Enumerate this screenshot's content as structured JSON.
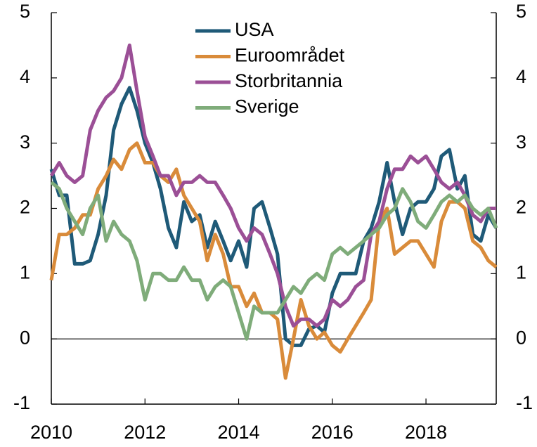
{
  "chart_data": {
    "type": "line",
    "x": [
      2010,
      2010.17,
      2010.33,
      2010.5,
      2010.67,
      2010.83,
      2011,
      2011.17,
      2011.33,
      2011.5,
      2011.67,
      2011.83,
      2012,
      2012.17,
      2012.33,
      2012.5,
      2012.67,
      2012.83,
      2013,
      2013.17,
      2013.33,
      2013.5,
      2013.67,
      2013.83,
      2014,
      2014.17,
      2014.33,
      2014.5,
      2014.67,
      2014.83,
      2015,
      2015.17,
      2015.33,
      2015.5,
      2015.67,
      2015.83,
      2016,
      2016.17,
      2016.33,
      2016.5,
      2016.67,
      2016.83,
      2017,
      2017.17,
      2017.33,
      2017.5,
      2017.67,
      2017.83,
      2018,
      2018.17,
      2018.33,
      2018.5,
      2018.67,
      2018.83,
      2019,
      2019.17,
      2019.33,
      2019.5
    ],
    "series": [
      {
        "name": "USA",
        "color": "#1f5a78",
        "values": [
          2.6,
          2.2,
          2.2,
          1.15,
          1.15,
          1.2,
          1.6,
          2.2,
          3.2,
          3.6,
          3.85,
          3.5,
          3.0,
          2.7,
          2.3,
          1.7,
          1.4,
          2.1,
          1.8,
          1.9,
          1.4,
          1.8,
          1.5,
          1.2,
          1.5,
          1.1,
          2.0,
          2.1,
          1.7,
          1.3,
          0.0,
          -0.1,
          -0.1,
          0.15,
          0.2,
          0.1,
          0.7,
          1.0,
          1.0,
          1.0,
          1.5,
          1.7,
          2.1,
          2.7,
          2.1,
          1.6,
          2.0,
          2.1,
          2.1,
          2.3,
          2.8,
          2.9,
          2.3,
          2.5,
          1.6,
          1.5,
          1.9,
          1.7
        ]
      },
      {
        "name": "Euroområdet",
        "color": "#d98b3a",
        "values": [
          0.9,
          1.6,
          1.6,
          1.7,
          1.9,
          1.9,
          2.3,
          2.5,
          2.75,
          2.6,
          2.9,
          3.0,
          2.7,
          2.7,
          2.5,
          2.4,
          2.6,
          2.2,
          2.0,
          1.8,
          1.2,
          1.6,
          1.3,
          0.8,
          0.8,
          0.5,
          0.7,
          0.4,
          0.4,
          0.3,
          -0.6,
          0.0,
          0.6,
          0.2,
          0.0,
          0.1,
          -0.1,
          -0.2,
          0.0,
          0.2,
          0.4,
          0.6,
          1.8,
          2.0,
          1.3,
          1.4,
          1.5,
          1.5,
          1.3,
          1.1,
          1.8,
          2.1,
          2.1,
          2.0,
          1.5,
          1.4,
          1.2,
          1.1
        ]
      },
      {
        "name": "Storbritannia",
        "color": "#9b4f96",
        "values": [
          2.5,
          2.7,
          2.5,
          2.4,
          2.5,
          3.2,
          3.5,
          3.7,
          3.8,
          4.0,
          4.5,
          3.8,
          3.1,
          2.8,
          2.5,
          2.5,
          2.2,
          2.4,
          2.4,
          2.5,
          2.4,
          2.4,
          2.2,
          2.0,
          1.7,
          1.5,
          1.7,
          1.6,
          1.3,
          1.0,
          0.5,
          0.2,
          0.3,
          0.3,
          0.2,
          0.3,
          0.6,
          0.5,
          0.6,
          0.8,
          0.9,
          1.6,
          1.8,
          2.3,
          2.6,
          2.6,
          2.8,
          2.7,
          2.8,
          2.6,
          2.4,
          2.3,
          2.4,
          2.2,
          1.9,
          1.8,
          2.0,
          2.0
        ]
      },
      {
        "name": "Sverige",
        "color": "#7fac7a",
        "values": [
          2.4,
          2.3,
          2.0,
          1.8,
          1.6,
          2.0,
          2.2,
          1.5,
          1.8,
          1.6,
          1.5,
          1.2,
          0.6,
          1.0,
          1.0,
          0.9,
          0.9,
          1.1,
          0.9,
          0.9,
          0.6,
          0.8,
          0.9,
          0.8,
          0.4,
          0.0,
          0.5,
          0.4,
          0.4,
          0.4,
          0.6,
          0.8,
          0.7,
          0.9,
          1.0,
          0.9,
          1.3,
          1.4,
          1.3,
          1.4,
          1.5,
          1.6,
          1.7,
          1.9,
          2.0,
          2.3,
          2.1,
          1.8,
          1.7,
          1.9,
          2.1,
          2.2,
          2.1,
          2.2,
          2.0,
          1.9,
          2.0,
          1.7
        ]
      }
    ],
    "xlim": [
      2010,
      2019.5
    ],
    "xticks": [
      2010,
      2012,
      2014,
      2016,
      2018
    ],
    "ylim": [
      -1,
      5
    ],
    "yticks": [
      -1,
      0,
      1,
      2,
      3,
      4,
      5
    ],
    "legend": "top"
  }
}
